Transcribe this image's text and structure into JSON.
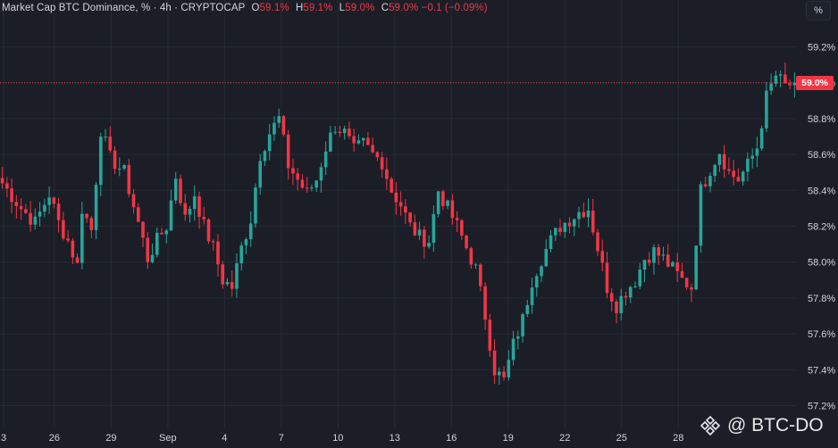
{
  "header": {
    "title": "Market Cap BTC Dominance, %",
    "sep": "·",
    "interval": "4h",
    "exchange": "CRYPTOCAP",
    "o_label": "O",
    "o_value": "59.1%",
    "h_label": "H",
    "h_value": "59.1%",
    "l_label": "L",
    "l_value": "59.0%",
    "c_label": "C",
    "c_value": "59.0%",
    "change": "−0.1 (−0.09%)"
  },
  "unit_button": "%",
  "last_price_label": "59.0%",
  "watermark": "@ BTC-DO",
  "colors": {
    "background": "#1b1e27",
    "up": "#26a69a",
    "down": "#f23645",
    "grid": "#262a34",
    "axis_text": "#d1d4dc"
  },
  "chart_data": {
    "type": "candlestick",
    "title": "Market Cap BTC Dominance, %",
    "interval": "4h",
    "ylim": [
      57.2,
      59.2
    ],
    "y_ticks": [
      "59.2%",
      "59.0%",
      "58.8%",
      "58.6%",
      "58.4%",
      "58.2%",
      "58.0%",
      "57.8%",
      "57.6%",
      "57.4%",
      "57.2%"
    ],
    "x_ticks": [
      "3",
      "26",
      "29",
      "Sep",
      "4",
      "7",
      "10",
      "13",
      "16",
      "19",
      "22",
      "25",
      "28"
    ],
    "last_close": 59.0,
    "grid": true,
    "path_points": [
      [
        0,
        58.44
      ],
      [
        4,
        58.3
      ],
      [
        7,
        58.22
      ],
      [
        10,
        58.38
      ],
      [
        12,
        58.22
      ],
      [
        14,
        58.12
      ],
      [
        16,
        57.98
      ],
      [
        17,
        58.3
      ],
      [
        19,
        58.18
      ],
      [
        21,
        58.74
      ],
      [
        23,
        58.58
      ],
      [
        26,
        58.5
      ],
      [
        29,
        58.22
      ],
      [
        31,
        58.02
      ],
      [
        33,
        58.12
      ],
      [
        35,
        58.2
      ],
      [
        37,
        58.48
      ],
      [
        39,
        58.24
      ],
      [
        41,
        58.38
      ],
      [
        43,
        58.2
      ],
      [
        45,
        58.08
      ],
      [
        47,
        57.9
      ],
      [
        49,
        57.86
      ],
      [
        51,
        58.08
      ],
      [
        53,
        58.24
      ],
      [
        55,
        58.6
      ],
      [
        57,
        58.72
      ],
      [
        59,
        58.8
      ],
      [
        61,
        58.54
      ],
      [
        63,
        58.46
      ],
      [
        65,
        58.38
      ],
      [
        67,
        58.46
      ],
      [
        69,
        58.64
      ],
      [
        71,
        58.76
      ],
      [
        73,
        58.72
      ],
      [
        75,
        58.62
      ],
      [
        77,
        58.66
      ],
      [
        79,
        58.6
      ],
      [
        81,
        58.56
      ],
      [
        83,
        58.4
      ],
      [
        85,
        58.32
      ],
      [
        87,
        58.2
      ],
      [
        89,
        58.14
      ],
      [
        91,
        58.12
      ],
      [
        93,
        58.4
      ],
      [
        95,
        58.3
      ],
      [
        97,
        58.2
      ],
      [
        99,
        58.08
      ],
      [
        101,
        57.96
      ],
      [
        103,
        57.7
      ],
      [
        105,
        57.4
      ],
      [
        107,
        57.34
      ],
      [
        109,
        57.54
      ],
      [
        111,
        57.68
      ],
      [
        113,
        57.9
      ],
      [
        115,
        58.02
      ],
      [
        117,
        58.12
      ],
      [
        119,
        58.2
      ],
      [
        121,
        58.24
      ],
      [
        123,
        58.28
      ],
      [
        125,
        58.3
      ],
      [
        127,
        58.08
      ],
      [
        129,
        57.86
      ],
      [
        131,
        57.76
      ],
      [
        133,
        57.84
      ],
      [
        135,
        57.9
      ],
      [
        137,
        58.02
      ],
      [
        139,
        58.06
      ],
      [
        141,
        58.02
      ],
      [
        143,
        57.96
      ],
      [
        145,
        57.9
      ],
      [
        147,
        57.86
      ],
      [
        149,
        58.4
      ],
      [
        151,
        58.52
      ],
      [
        153,
        58.62
      ],
      [
        155,
        58.5
      ],
      [
        157,
        58.46
      ],
      [
        159,
        58.54
      ],
      [
        161,
        58.64
      ],
      [
        163,
        58.92
      ],
      [
        165,
        59.04
      ],
      [
        167,
        58.98
      ],
      [
        169,
        59.0
      ]
    ]
  }
}
